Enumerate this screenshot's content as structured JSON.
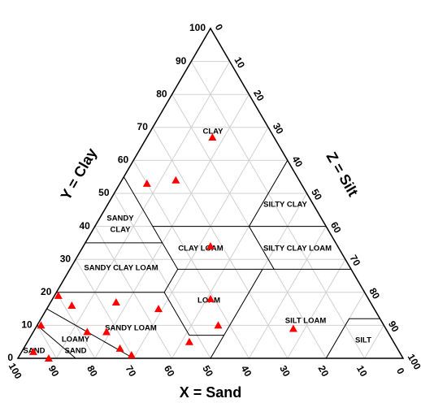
{
  "chart_data": {
    "type": "ternary",
    "xlabel": "X = Sand",
    "ylabel": "Y = Clay",
    "zlabel": "Z = Silt",
    "xticks": [
      0,
      10,
      20,
      30,
      40,
      50,
      60,
      70,
      80,
      90,
      100
    ],
    "yticks": [
      0,
      10,
      20,
      30,
      40,
      50,
      60,
      70,
      80,
      90,
      100
    ],
    "zticks": [
      0,
      10,
      20,
      30,
      40,
      50,
      60,
      70,
      80,
      90,
      100
    ],
    "grid": true,
    "regions": [
      {
        "label": [
          "CLAY"
        ]
      },
      {
        "label": [
          "SANDY",
          "CLAY"
        ]
      },
      {
        "label": [
          "SILTY CLAY"
        ]
      },
      {
        "label": [
          "CLAY LOAM"
        ]
      },
      {
        "label": [
          "SILTY CLAY LOAM"
        ]
      },
      {
        "label": [
          "SANDY CLAY LOAM"
        ]
      },
      {
        "label": [
          "LOAM"
        ]
      },
      {
        "label": [
          "SANDY LOAM"
        ]
      },
      {
        "label": [
          "SILT LOAM"
        ]
      },
      {
        "label": [
          "LOAMY",
          "SAND"
        ]
      },
      {
        "label": [
          "SAND"
        ]
      },
      {
        "label": [
          "SILT"
        ]
      }
    ],
    "series": [
      {
        "color": "#ff0000",
        "x": [
          16,
          40,
          32,
          33,
          41,
          43,
          53,
          24,
          56,
          66,
          78,
          80,
          89,
          73,
          78,
          72,
          70,
          92,
          95
        ],
        "y": [
          67,
          53,
          54,
          34,
          18,
          10,
          5,
          9,
          15,
          17,
          16,
          19,
          10,
          8,
          8,
          3,
          1,
          0,
          2
        ],
        "z": [
          17,
          7,
          14,
          33,
          41,
          47,
          42,
          67,
          29,
          17,
          6,
          1,
          1,
          19,
          14,
          25,
          29,
          8,
          3
        ]
      }
    ]
  }
}
